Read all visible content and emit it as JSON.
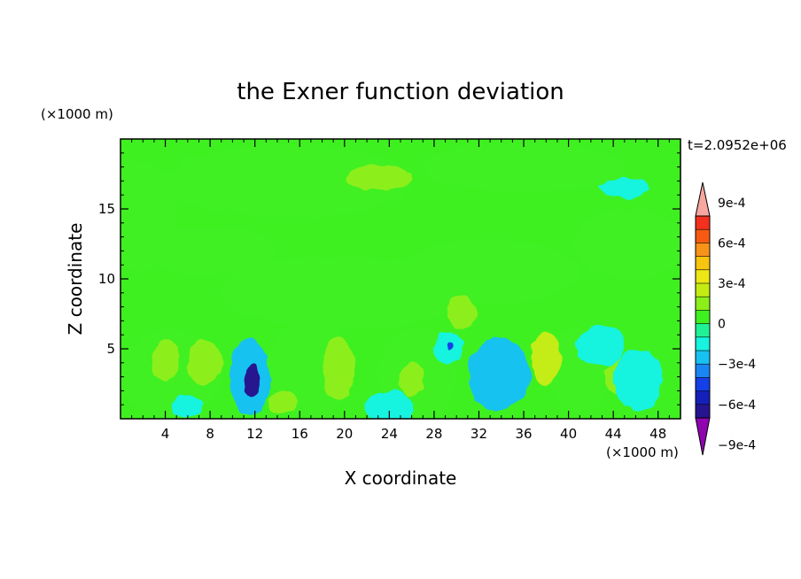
{
  "chart_data": {
    "type": "heatmap",
    "title": "the Exner function deviation",
    "xlabel": "X coordinate",
    "ylabel": "Z coordinate",
    "x_unit": "(×1000 m)",
    "y_unit": "(×1000 m)",
    "time_label": "t=2.0952e+06",
    "xlim": [
      0,
      50
    ],
    "ylim": [
      0,
      20
    ],
    "x_ticks": [
      4,
      8,
      12,
      16,
      20,
      24,
      28,
      32,
      36,
      40,
      44,
      48
    ],
    "y_ticks": [
      5,
      10,
      15
    ],
    "colorbar": {
      "range": [
        -0.0011,
        0.0011
      ],
      "tick_values": [
        0.0009,
        0.0006,
        0.0003,
        0,
        -0.0003,
        -0.0006,
        -0.0009
      ],
      "tick_labels": [
        "9e-4",
        "6e-4",
        "3e-4",
        "0",
        "−3e-4",
        "−6e-4",
        "−9e-4"
      ],
      "colors": [
        "#f7a7a0",
        "#f4301f",
        "#f75a12",
        "#f8931a",
        "#f7c40f",
        "#ede716",
        "#c4ec12",
        "#8cef1a",
        "#3ff020",
        "#1ff296",
        "#17f3df",
        "#18c2f0",
        "#1a86f3",
        "#1440e8",
        "#1420b8",
        "#26158f",
        "#8e05b0"
      ]
    },
    "regions": [
      {
        "x": 1.5,
        "y": 14.5,
        "rx": 3.5,
        "ry": 4.0,
        "v": 5e-05
      },
      {
        "x": 15.0,
        "y": 17.0,
        "rx": 11.0,
        "ry": 2.6,
        "v": 6e-05
      },
      {
        "x": 36.0,
        "y": 18.0,
        "rx": 9.0,
        "ry": 1.8,
        "v": 4e-05
      },
      {
        "x": 45.5,
        "y": 12.5,
        "rx": 5.0,
        "ry": 2.5,
        "v": 5e-05
      },
      {
        "x": 8.0,
        "y": 12.0,
        "rx": 6.0,
        "ry": 1.8,
        "v": 4e-05
      },
      {
        "x": 33.0,
        "y": 10.5,
        "rx": 8.0,
        "ry": 2.3,
        "v": 4e-05
      },
      {
        "x": 20.0,
        "y": 9.0,
        "rx": 11.0,
        "ry": 2.6,
        "v": 3e-05
      },
      {
        "x": 4.5,
        "y": 3.2,
        "rx": 4.5,
        "ry": 3.2,
        "v": 5e-05
      },
      {
        "x": 17.0,
        "y": 3.5,
        "rx": 4.0,
        "ry": 3.5,
        "v": 6e-05
      },
      {
        "x": 26.5,
        "y": 3.0,
        "rx": 3.5,
        "ry": 3.5,
        "v": 6e-05
      },
      {
        "x": 41.0,
        "y": 3.5,
        "rx": 3.0,
        "ry": 3.0,
        "v": 5e-05
      },
      {
        "x": 23.0,
        "y": 17.2,
        "rx": 3.0,
        "ry": 0.9,
        "v": 0.00016
      },
      {
        "x": 7.5,
        "y": 4.0,
        "rx": 1.6,
        "ry": 1.6,
        "v": 0.00018
      },
      {
        "x": 4.0,
        "y": 4.2,
        "rx": 1.2,
        "ry": 1.5,
        "v": 0.00012
      },
      {
        "x": 19.5,
        "y": 3.6,
        "rx": 1.4,
        "ry": 2.3,
        "v": 0.00014
      },
      {
        "x": 38.0,
        "y": 4.3,
        "rx": 1.3,
        "ry": 1.9,
        "v": 0.0002
      },
      {
        "x": 44.5,
        "y": 3.0,
        "rx": 1.3,
        "ry": 1.3,
        "v": 0.00015
      },
      {
        "x": 26.0,
        "y": 2.8,
        "rx": 1.2,
        "ry": 1.2,
        "v": 0.00012
      },
      {
        "x": 30.5,
        "y": 7.6,
        "rx": 1.2,
        "ry": 1.2,
        "v": 0.00012
      },
      {
        "x": 14.5,
        "y": 1.2,
        "rx": 1.4,
        "ry": 0.8,
        "v": 0.00012
      },
      {
        "x": 11.5,
        "y": 3.0,
        "rx": 1.8,
        "ry": 2.8,
        "v": -0.00022
      },
      {
        "x": 11.8,
        "y": 2.7,
        "rx": 0.7,
        "ry": 1.2,
        "v": -0.00065
      },
      {
        "x": 33.8,
        "y": 3.2,
        "rx": 2.8,
        "ry": 2.6,
        "v": -0.00021
      },
      {
        "x": 29.3,
        "y": 5.1,
        "rx": 1.3,
        "ry": 1.2,
        "v": -0.00015
      },
      {
        "x": 29.3,
        "y": 5.2,
        "rx": 0.3,
        "ry": 0.3,
        "v": -0.00045
      },
      {
        "x": 24.0,
        "y": 0.8,
        "rx": 2.2,
        "ry": 1.2,
        "v": -0.00015
      },
      {
        "x": 46.2,
        "y": 2.8,
        "rx": 2.2,
        "ry": 2.2,
        "v": -0.00015
      },
      {
        "x": 42.8,
        "y": 5.2,
        "rx": 2.2,
        "ry": 1.4,
        "v": -0.00013
      },
      {
        "x": 6.0,
        "y": 0.9,
        "rx": 1.6,
        "ry": 0.8,
        "v": -0.00014
      },
      {
        "x": 45.0,
        "y": 16.5,
        "rx": 2.2,
        "ry": 0.7,
        "v": -0.00013
      }
    ]
  }
}
